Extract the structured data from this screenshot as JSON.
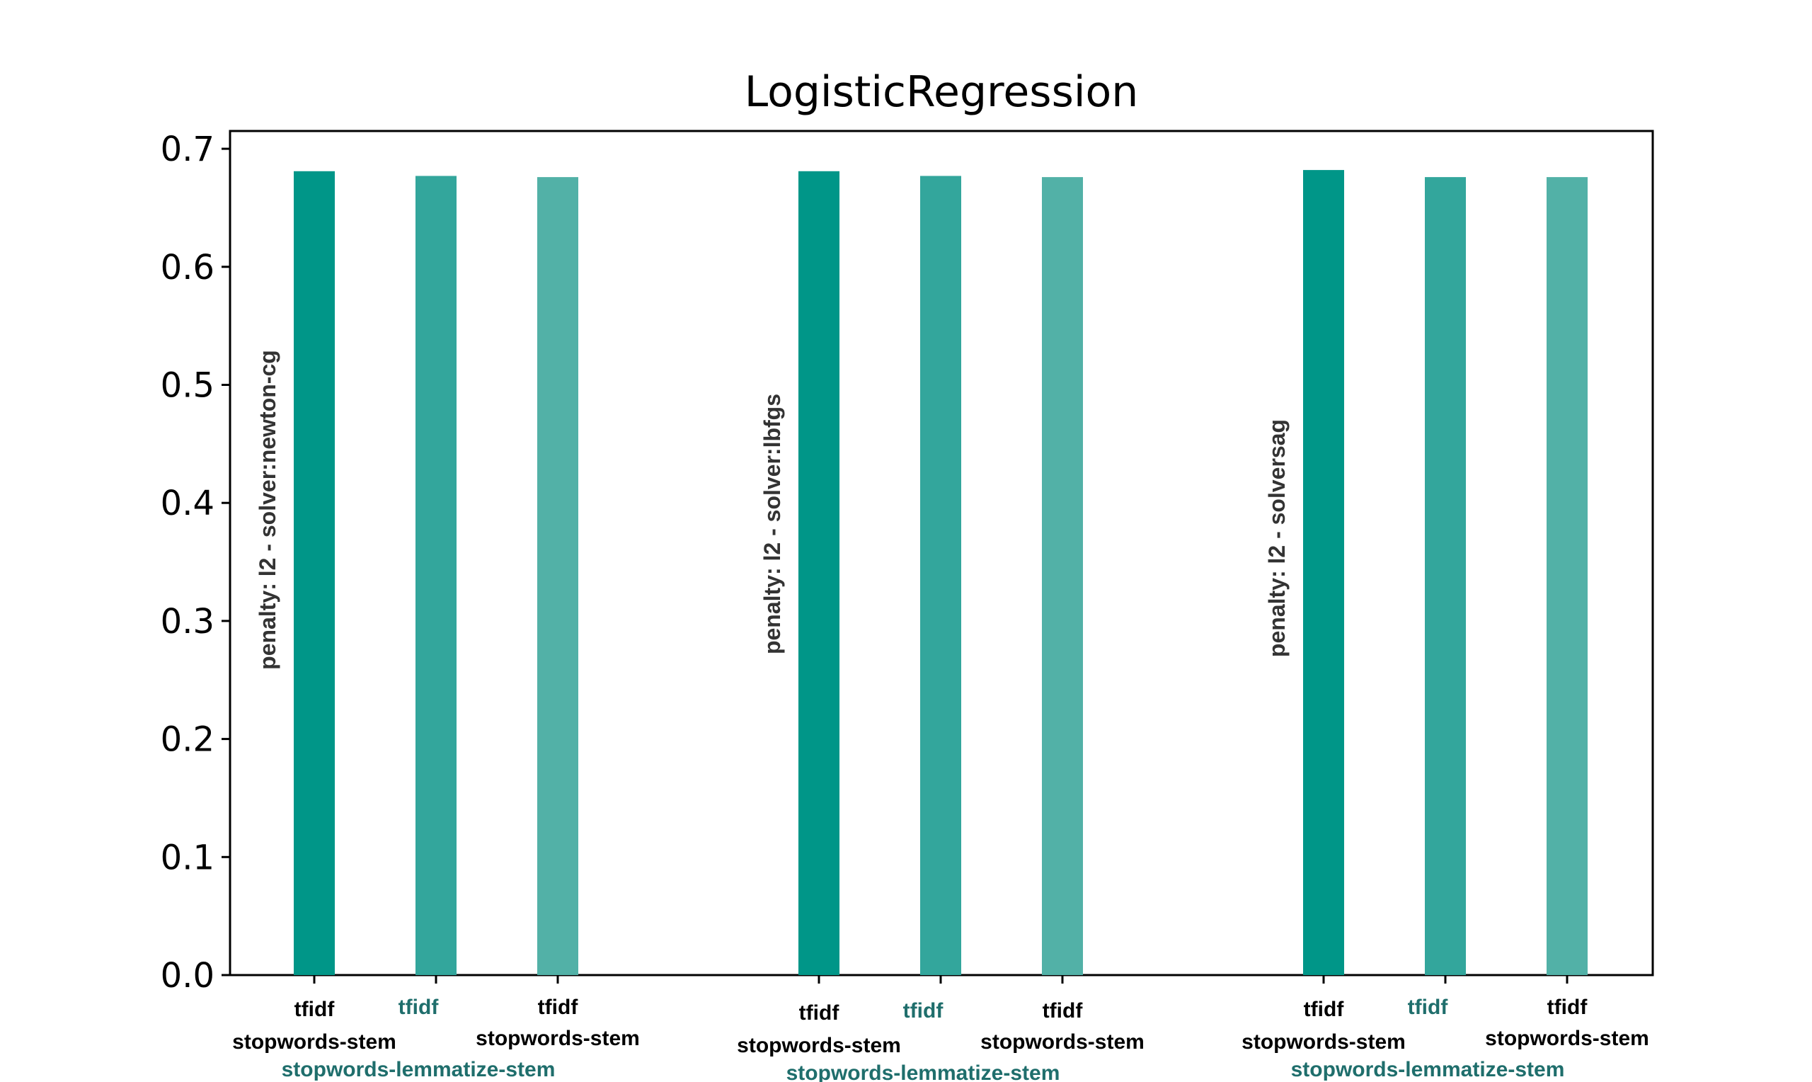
{
  "chart_data": {
    "type": "bar",
    "title": "LogisticRegression",
    "ylim": [
      0,
      0.72
    ],
    "yticks": [
      "0.0",
      "0.1",
      "0.2",
      "0.3",
      "0.4",
      "0.5",
      "0.6",
      "0.7"
    ],
    "grid": false,
    "groups": [
      {
        "label": "penalty: l2 - solver:newton-cg",
        "bars": [
          {
            "label": [
              "tfidf",
              "stopwords-stem"
            ],
            "value": 0.681,
            "color": "#009688"
          },
          {
            "label": [
              "tfidf",
              "stopwords-lemmatize-stem"
            ],
            "value": 0.677,
            "color": "#33a69c"
          },
          {
            "label": [
              "tfidf",
              "stopwords-stem"
            ],
            "value": 0.676,
            "color": "#52b1a7"
          }
        ]
      },
      {
        "label": "penalty: l2 - solver:lbfgs",
        "bars": [
          {
            "label": [
              "tfidf",
              "stopwords-stem"
            ],
            "value": 0.681,
            "color": "#009688"
          },
          {
            "label": [
              "tfidf",
              "stopwords-lemmatize-stem"
            ],
            "value": 0.677,
            "color": "#33a69c"
          },
          {
            "label": [
              "tfidf",
              "stopwords-stem"
            ],
            "value": 0.676,
            "color": "#52b1a7"
          }
        ]
      },
      {
        "label": "penalty: l2 - solversag",
        "bars": [
          {
            "label": [
              "tfidf",
              "stopwords-stem"
            ],
            "value": 0.682,
            "color": "#009688"
          },
          {
            "label": [
              "tfidf",
              "stopwords-lemmatize-stem"
            ],
            "value": 0.676,
            "color": "#33a69c"
          },
          {
            "label": [
              "tfidf",
              "stopwords-stem"
            ],
            "value": 0.676,
            "color": "#52b1a7"
          }
        ]
      }
    ]
  }
}
